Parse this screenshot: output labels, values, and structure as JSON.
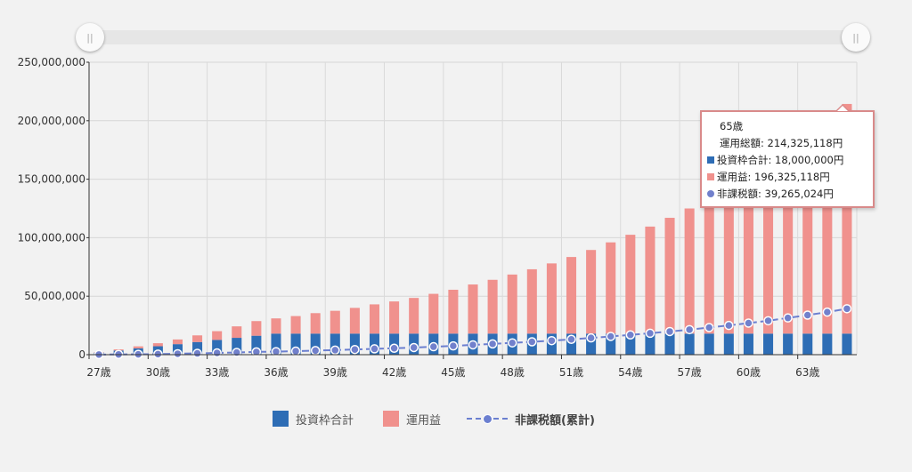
{
  "slider": {
    "left_handle": "||",
    "right_handle": "||"
  },
  "colors": {
    "invest": "#2e6db5",
    "gain": "#f0918d",
    "tax_line": "#6b7fd0",
    "tax_point": "#7180cc",
    "tooltip_border": "#d98a8a"
  },
  "chart_data": {
    "type": "bar",
    "stacked": true,
    "ylim": [
      0,
      250000000
    ],
    "yticks": [
      "0",
      "50,000,000",
      "100,000,000",
      "150,000,000",
      "200,000,000",
      "250,000,000"
    ],
    "categories": [
      "27歳",
      "28歳",
      "29歳",
      "30歳",
      "31歳",
      "32歳",
      "33歳",
      "34歳",
      "35歳",
      "36歳",
      "37歳",
      "38歳",
      "39歳",
      "40歳",
      "41歳",
      "42歳",
      "43歳",
      "44歳",
      "45歳",
      "46歳",
      "47歳",
      "48歳",
      "49歳",
      "50歳",
      "51歳",
      "52歳",
      "53歳",
      "54歳",
      "55歳",
      "56歳",
      "57歳",
      "58歳",
      "59歳",
      "60歳",
      "61歳",
      "62歳",
      "63歳",
      "64歳",
      "65歳"
    ],
    "xtick_labels": [
      "27歳",
      "30歳",
      "33歳",
      "36歳",
      "39歳",
      "42歳",
      "45歳",
      "48歳",
      "51歳",
      "54歳",
      "57歳",
      "60歳",
      "63歳"
    ],
    "series": [
      {
        "name": "投資枠合計",
        "kind": "bar",
        "values": [
          1800000,
          3600000,
          5400000,
          7200000,
          9000000,
          10800000,
          12600000,
          14400000,
          16200000,
          18000000,
          18000000,
          18000000,
          18000000,
          18000000,
          18000000,
          18000000,
          18000000,
          18000000,
          18000000,
          18000000,
          18000000,
          18000000,
          18000000,
          18000000,
          18000000,
          18000000,
          18000000,
          18000000,
          18000000,
          18000000,
          18000000,
          18000000,
          18000000,
          18000000,
          18000000,
          18000000,
          18000000,
          18000000,
          18000000
        ]
      },
      {
        "name": "運用益",
        "kind": "bar",
        "values": [
          400000,
          900000,
          1700000,
          2600000,
          4000000,
          5700000,
          7500000,
          9800000,
          12500000,
          13000000,
          15000000,
          17500000,
          19500000,
          22000000,
          25000000,
          27500000,
          30500000,
          34000000,
          37500000,
          42000000,
          46000000,
          50500000,
          55000000,
          60000000,
          65500000,
          71500000,
          78000000,
          84500000,
          91500000,
          99000000,
          107000000,
          116000000,
          125000000,
          135000000,
          145000000,
          157000000,
          169000000,
          182000000,
          196325118
        ]
      },
      {
        "name": "非課税額(累計)",
        "kind": "line",
        "values": [
          100000,
          200000,
          300000,
          500000,
          800000,
          1100000,
          1500000,
          1900000,
          2400000,
          2600000,
          3000000,
          3500000,
          3900000,
          4400000,
          5000000,
          5500000,
          6100000,
          6800000,
          7500000,
          8400000,
          9200000,
          10100000,
          11000000,
          12000000,
          13100000,
          14300000,
          15600000,
          16900000,
          18300000,
          19800000,
          21400000,
          23200000,
          25000000,
          27000000,
          29000000,
          31400000,
          33800000,
          36400000,
          39265024
        ]
      }
    ]
  },
  "tooltip": {
    "age": "65歳",
    "total": "運用総額: 214,325,118円",
    "invest": "投資枠合計: 18,000,000円",
    "gain": "運用益: 196,325,118円",
    "tax": "非課税額: 39,265,024円"
  },
  "legend": {
    "invest": "投資枠合計",
    "gain": "運用益",
    "tax": "非課税額(累計)"
  }
}
